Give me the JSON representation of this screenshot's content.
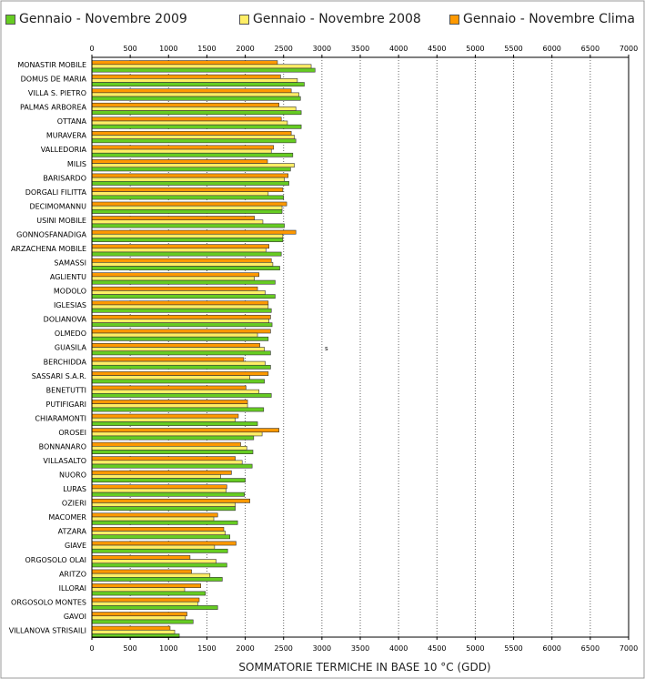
{
  "chart_data": {
    "type": "bar",
    "orientation": "horizontal",
    "xlabel": "SOMMATORIE TERMICHE IN BASE 10 °C (GDD)",
    "xlim": [
      0,
      7000
    ],
    "xticks": [
      0,
      500,
      1000,
      1500,
      2000,
      2500,
      3000,
      3500,
      4000,
      4500,
      5000,
      5500,
      6000,
      6500,
      7000
    ],
    "grid": "vertical-dotted",
    "legend_position": "top",
    "annotation": "s",
    "categories": [
      "MONASTIR MOBILE",
      "DOMUS DE MARIA",
      "VILLA S. PIETRO",
      "PALMAS ARBOREA",
      "OTTANA",
      "MURAVERA",
      "VALLEDORIA",
      "MILIS",
      "BARISARDO",
      "DORGALI FILITTA",
      "DECIMOMANNU",
      "USINI MOBILE",
      "GONNOSFANADIGA",
      "ARZACHENA MOBILE",
      "SAMASSI",
      "AGLIENTU",
      "MODOLO",
      "IGLESIAS",
      "DOLIANOVA",
      "OLMEDO",
      "GUASILA",
      "BERCHIDDA",
      "SASSARI S.A.R.",
      "BENETUTTI",
      "PUTIFIGARI",
      "CHIARAMONTI",
      "OROSEI",
      "BONNANARO",
      "VILLASALTO",
      "NUORO",
      "LURAS",
      "OZIERI",
      "MACOMER",
      "ATZARA",
      "GIAVE",
      "ORGOSOLO OLAI",
      "ARITZO",
      "ILLORAI",
      "ORGOSOLO MONTES",
      "GAVOI",
      "VILLANOVA STRISAILI"
    ],
    "series": [
      {
        "name": "Gennaio - Novembre Clima",
        "color": "#ff9900",
        "values": [
          2420,
          2460,
          2600,
          2440,
          2470,
          2600,
          2370,
          2290,
          2560,
          2490,
          2540,
          2120,
          2660,
          2310,
          2340,
          2180,
          2160,
          2300,
          2330,
          2330,
          2190,
          1980,
          2300,
          2010,
          2030,
          1910,
          2440,
          1940,
          1870,
          1820,
          1760,
          2060,
          1640,
          1720,
          1880,
          1280,
          1300,
          1420,
          1400,
          1240,
          1020
        ]
      },
      {
        "name": "Gennaio - Novembre 2008",
        "color": "#ffee66",
        "values": [
          2860,
          2680,
          2700,
          2660,
          2550,
          2640,
          2340,
          2640,
          2510,
          2300,
          2480,
          2230,
          2490,
          2270,
          2360,
          2120,
          2260,
          2300,
          2310,
          2160,
          2250,
          2260,
          2060,
          2180,
          2030,
          1870,
          2220,
          2020,
          1960,
          1680,
          1750,
          1870,
          1590,
          1740,
          1600,
          1620,
          1540,
          1210,
          1380,
          1220,
          1080
        ]
      },
      {
        "name": "Gennaio - Novembre 2009",
        "color": "#66cc22",
        "values": [
          2910,
          2770,
          2720,
          2730,
          2730,
          2660,
          2620,
          2590,
          2570,
          2500,
          2480,
          2510,
          2490,
          2470,
          2450,
          2390,
          2390,
          2340,
          2350,
          2300,
          2330,
          2330,
          2250,
          2340,
          2240,
          2160,
          2110,
          2100,
          2090,
          2000,
          1990,
          1870,
          1900,
          1800,
          1770,
          1760,
          1700,
          1480,
          1640,
          1320,
          1140
        ]
      }
    ]
  }
}
